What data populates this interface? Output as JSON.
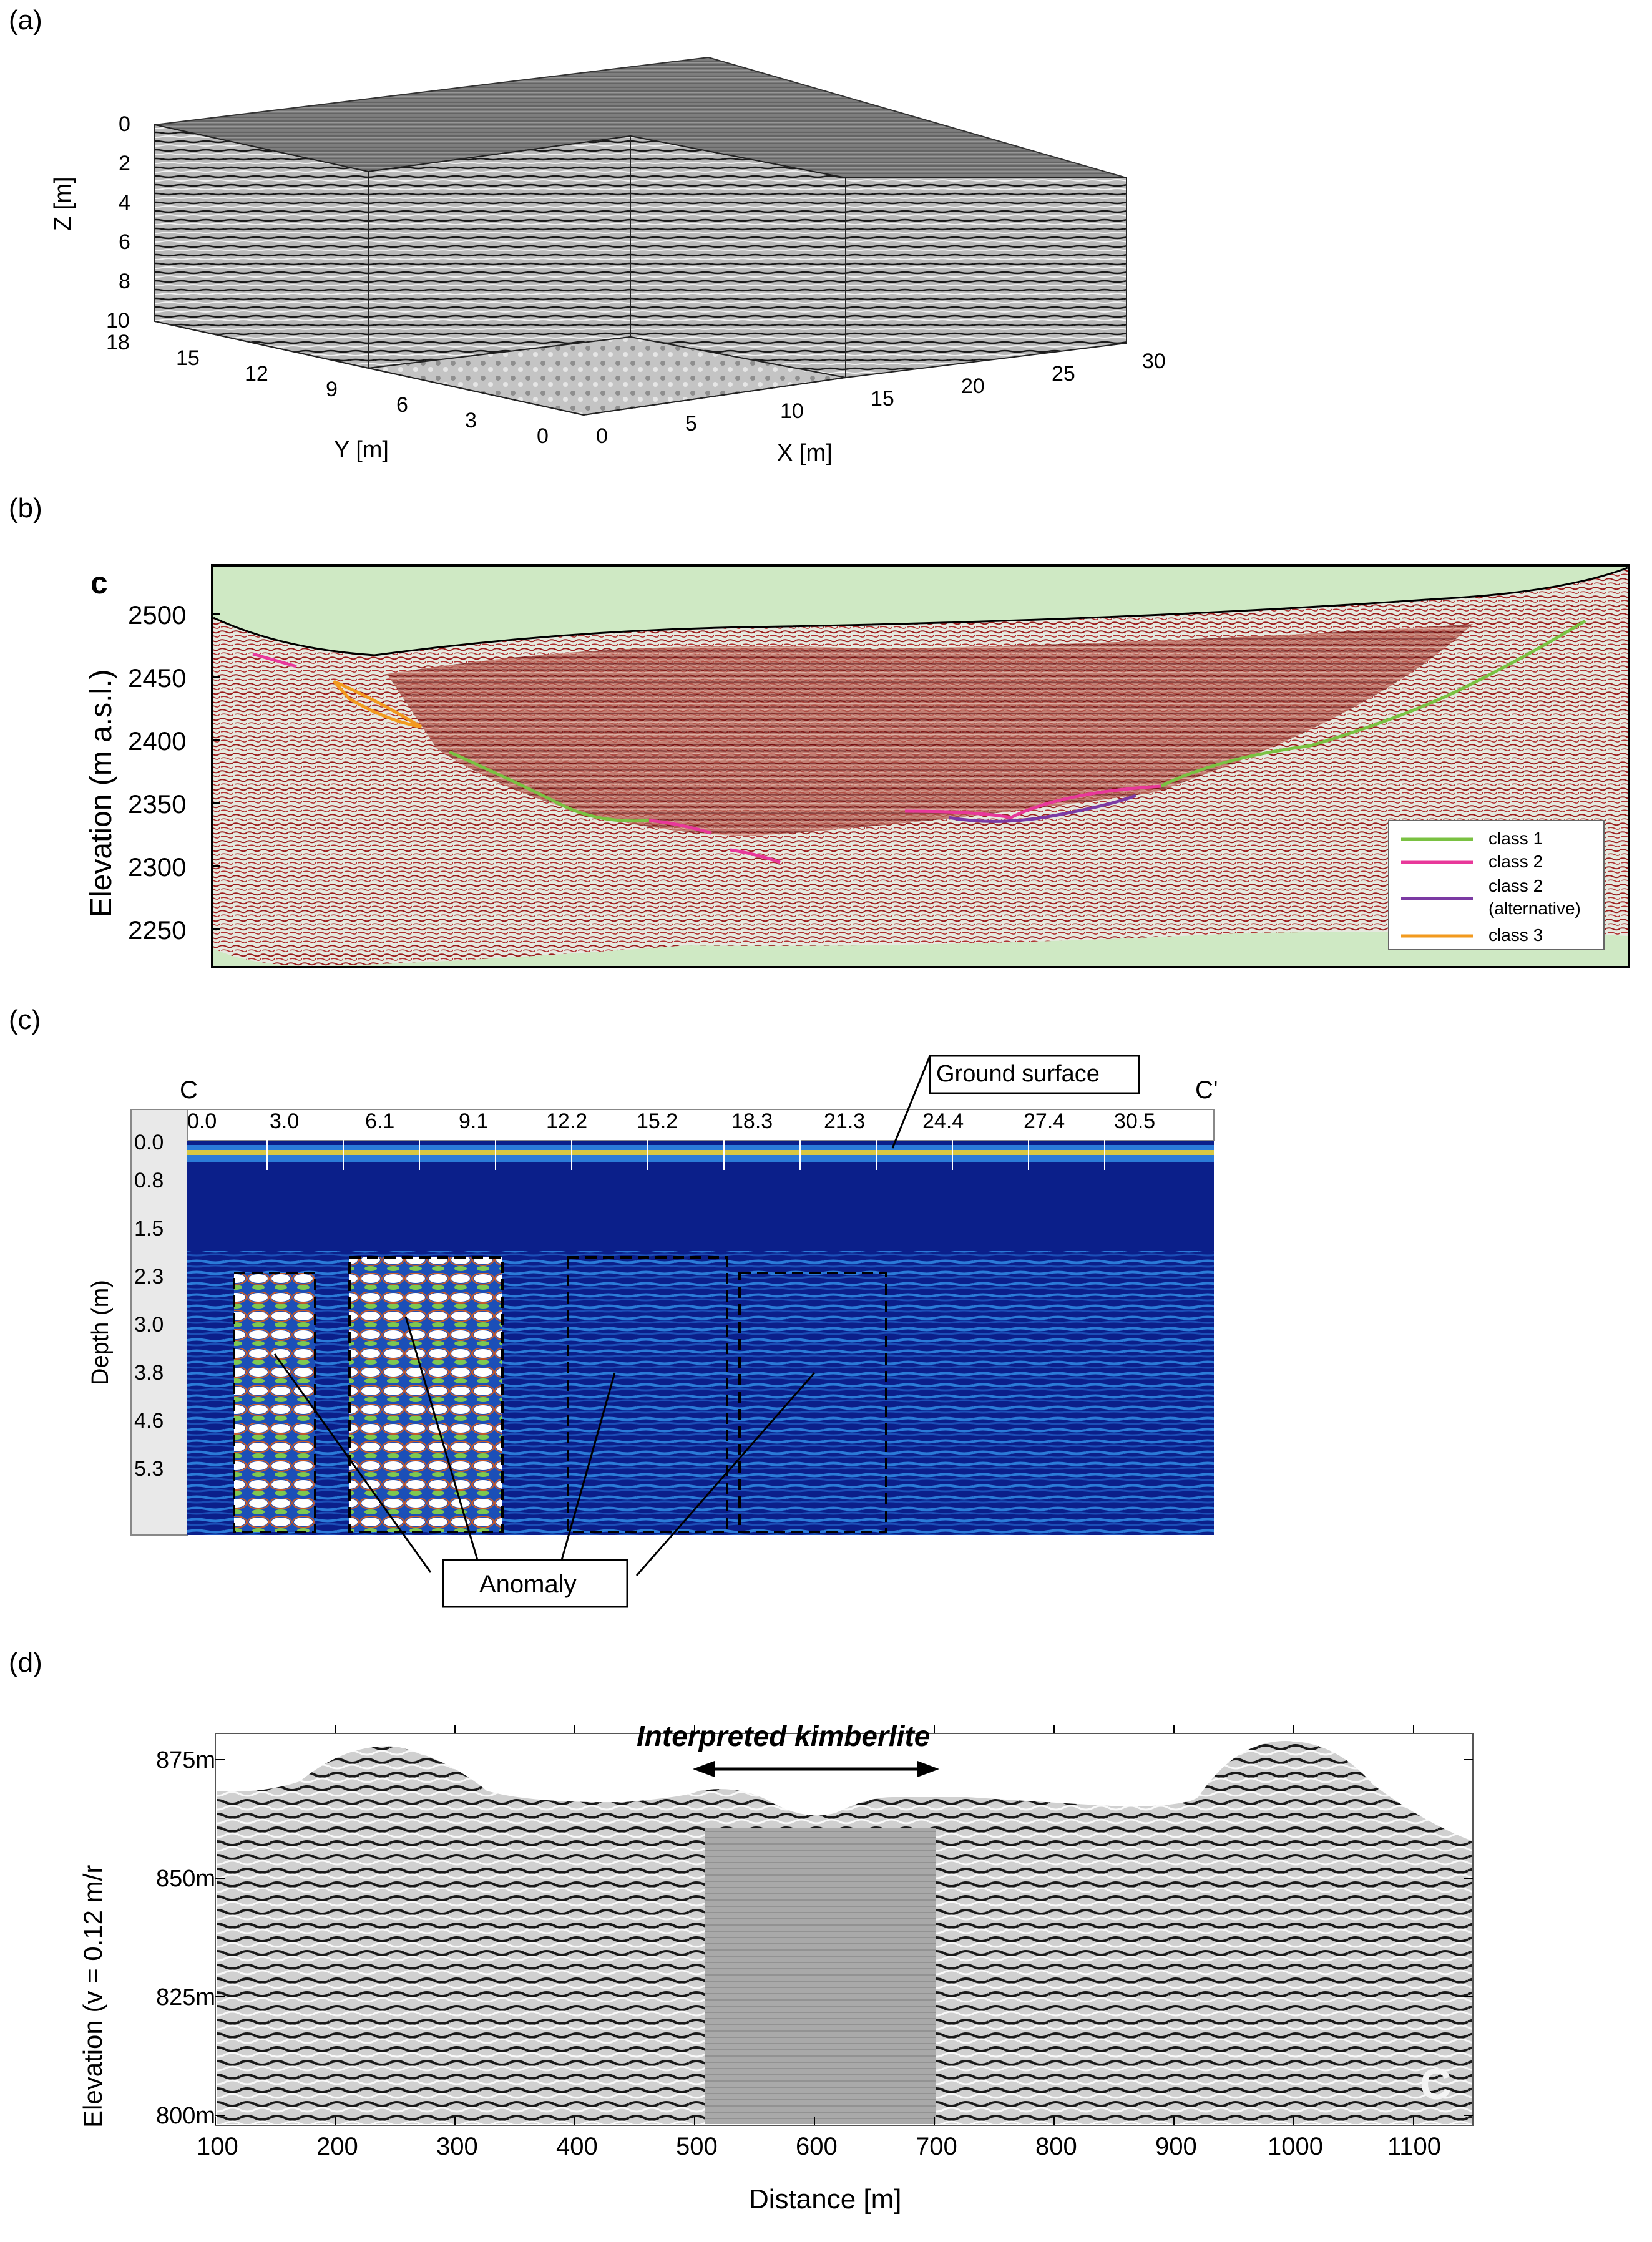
{
  "panel_a": {
    "label": "(a)",
    "z_axis": {
      "label": "Z [m]",
      "ticks": [
        "0",
        "2",
        "4",
        "6",
        "8",
        "10"
      ]
    },
    "y_axis": {
      "label": "Y [m]",
      "ticks": [
        "18",
        "15",
        "12",
        "9",
        "6",
        "3",
        "0"
      ]
    },
    "x_axis": {
      "label": "X [m]",
      "ticks": [
        "0",
        "5",
        "10",
        "15",
        "20",
        "25",
        "30"
      ]
    }
  },
  "panel_b": {
    "label": "(b)",
    "sub_label": "c",
    "y_axis": {
      "label": "Elevation (m a.s.l.)",
      "ticks": [
        "2500",
        "2450",
        "2400",
        "2350",
        "2300",
        "2250"
      ]
    },
    "legend": [
      {
        "label": "class 1",
        "color": "#7ac142"
      },
      {
        "label": "class 2",
        "color": "#e8389a"
      },
      {
        "label": "class 2\n(alternative)",
        "color": "#7b3aa3"
      },
      {
        "label": "class 3",
        "color": "#f29a1e"
      }
    ],
    "colors": {
      "background": "#cfe9c4",
      "section": "#e9ece4",
      "reflector": "#9b1c1c"
    }
  },
  "panel_c": {
    "label": "(c)",
    "left_marker": "C",
    "right_marker": "C'",
    "ground_surface": "Ground surface",
    "x_ticks": [
      "0.0",
      "3.0",
      "6.1",
      "9.1",
      "12.2",
      "15.2",
      "18.3",
      "21.3",
      "24.4",
      "27.4",
      "30.5"
    ],
    "y_axis": {
      "label": "Depth (m)",
      "ticks": [
        "0.0",
        "0.8",
        "1.5",
        "2.3",
        "3.0",
        "3.8",
        "4.6",
        "5.3"
      ]
    },
    "anomaly_label": "Anomaly",
    "colors": {
      "background": "#0b1f8a",
      "band": "#2b7bd8",
      "hot": "#ffffff"
    }
  },
  "panel_d": {
    "label": "(d)",
    "title": "Interpreted kimberlite",
    "y_axis": {
      "label": "Elevation (v = 0.12 m/r",
      "ticks": [
        "875m",
        "850m",
        "825m",
        "800m"
      ]
    },
    "x_axis": {
      "label": "Distance [m]",
      "ticks": [
        "100",
        "200",
        "300",
        "400",
        "500",
        "600",
        "700",
        "800",
        "900",
        "1000",
        "1100"
      ]
    },
    "corner_mark": "C"
  }
}
